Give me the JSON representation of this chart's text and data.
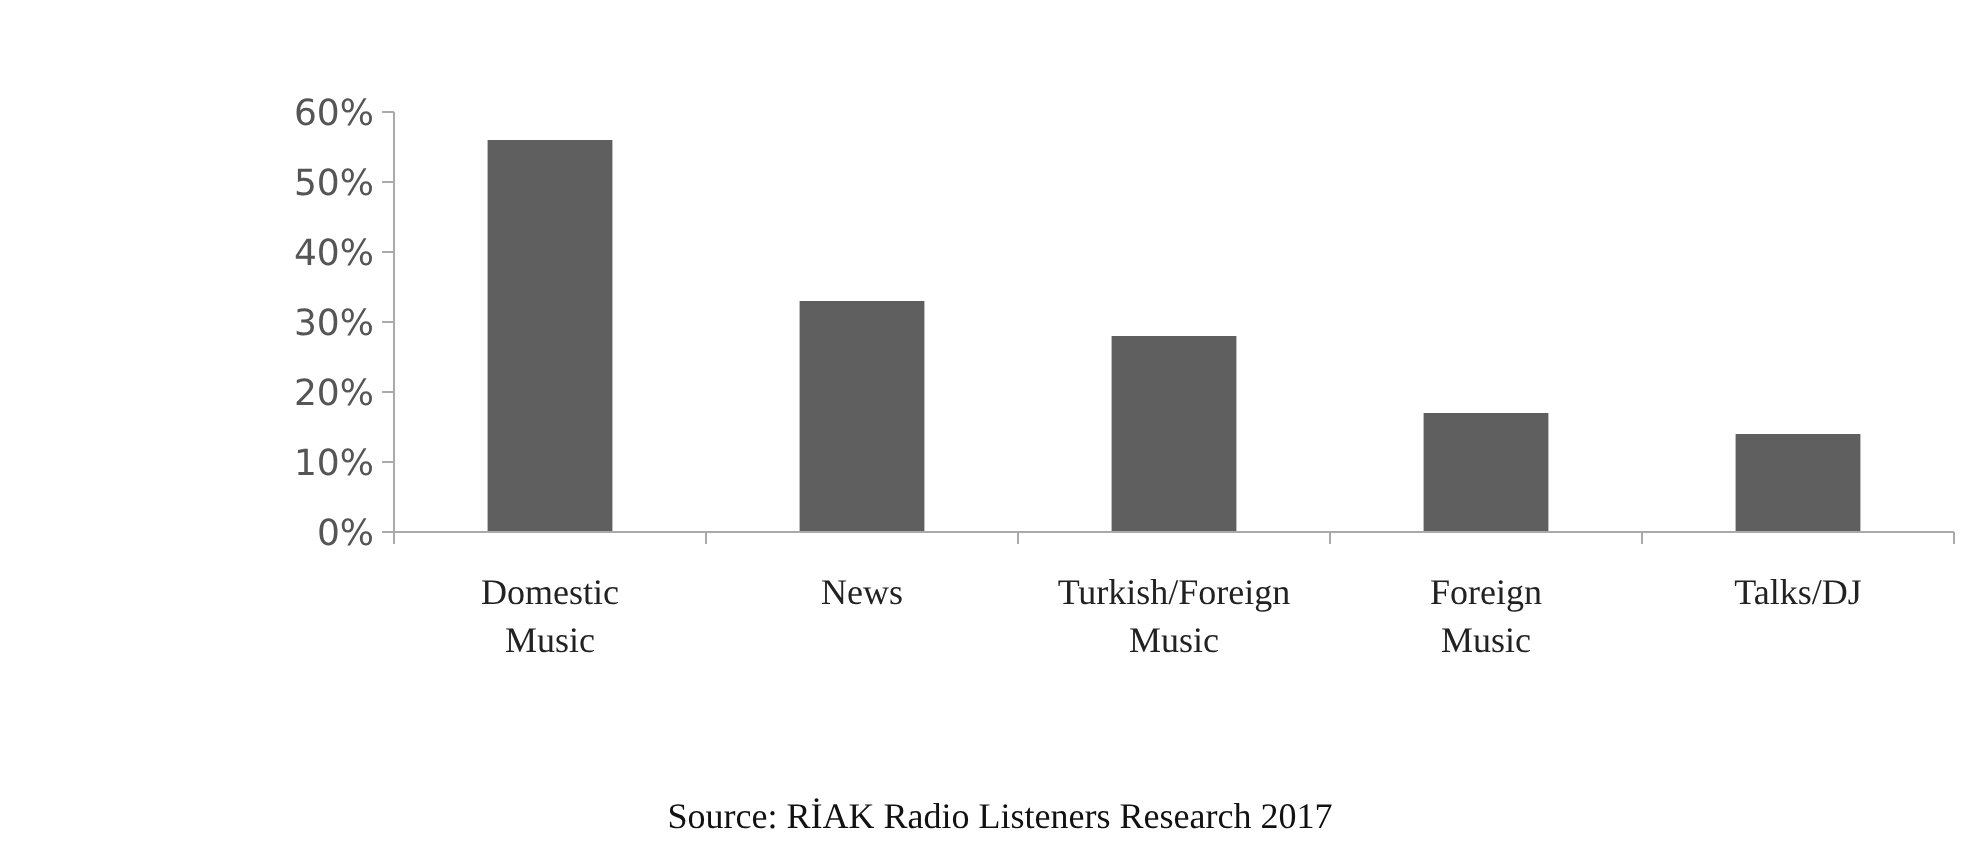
{
  "chart_data": {
    "type": "bar",
    "categories": [
      "Domestic Music",
      "News",
      "Turkish/Foreign Music",
      "Foreign Music",
      "Talks/DJ"
    ],
    "values": [
      56,
      33,
      28,
      17,
      14
    ],
    "color": "#5f5f5f",
    "ylim": [
      0,
      60
    ],
    "yticks": [
      {
        "value": 0,
        "label": "0%"
      },
      {
        "value": 10,
        "label": "10%"
      },
      {
        "value": 20,
        "label": "20%"
      },
      {
        "value": 30,
        "label": "30%"
      },
      {
        "value": 40,
        "label": "40%"
      },
      {
        "value": 50,
        "label": "50%"
      },
      {
        "value": 60,
        "label": "60%"
      }
    ],
    "grid": false,
    "annotations": [
      "Source: RİAK Radio Listeners Research 2017"
    ]
  }
}
